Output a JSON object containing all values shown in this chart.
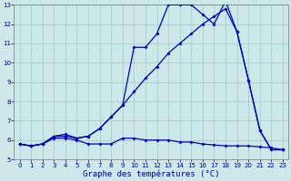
{
  "xlabel": "Graphe des températures (°C)",
  "bg_color": "#cce8e8",
  "grid_color": "#aacccc",
  "line_color": "#0000bb",
  "x": [
    0,
    1,
    2,
    3,
    4,
    5,
    6,
    7,
    8,
    9,
    10,
    11,
    12,
    13,
    14,
    15,
    16,
    17,
    18,
    19,
    20,
    21,
    22,
    23
  ],
  "y_flat": [
    5.8,
    5.7,
    5.8,
    6.1,
    6.1,
    6.0,
    5.8,
    5.8,
    5.8,
    6.1,
    6.1,
    6.0,
    6.0,
    6.0,
    5.9,
    5.9,
    5.8,
    5.75,
    5.7,
    5.7,
    5.7,
    5.65,
    5.6,
    5.5
  ],
  "y_mid": [
    5.8,
    5.7,
    5.8,
    6.2,
    6.3,
    6.1,
    6.2,
    6.6,
    7.2,
    7.8,
    8.5,
    9.2,
    9.8,
    10.5,
    11.0,
    11.5,
    12.0,
    12.4,
    12.8,
    11.6,
    9.1,
    6.5,
    5.5,
    5.5
  ],
  "y_jagged": [
    5.8,
    5.7,
    5.8,
    6.2,
    6.2,
    6.1,
    6.2,
    6.6,
    7.2,
    7.8,
    10.8,
    10.8,
    11.5,
    13.0,
    13.0,
    13.0,
    12.5,
    12.0,
    13.2,
    11.6,
    9.1,
    6.5,
    5.5,
    5.5
  ],
  "ylim": [
    5,
    13
  ],
  "xlim_min": -0.5,
  "xlim_max": 23.5,
  "yticks": [
    5,
    6,
    7,
    8,
    9,
    10,
    11,
    12,
    13
  ],
  "xticks": [
    0,
    1,
    2,
    3,
    4,
    5,
    6,
    7,
    8,
    9,
    10,
    11,
    12,
    13,
    14,
    15,
    16,
    17,
    18,
    19,
    20,
    21,
    22,
    23
  ],
  "tick_fontsize": 5,
  "xlabel_fontsize": 6.5
}
